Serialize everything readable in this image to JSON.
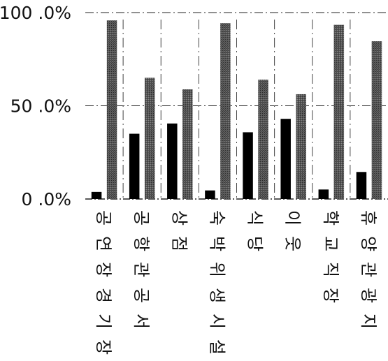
{
  "chart_data": {
    "type": "bar",
    "categories": [
      "공연장경기장",
      "공항관공서",
      "상점",
      "숙박위생시설",
      "식당",
      "이웃",
      "학교직장",
      "휴양관광지"
    ],
    "series": [
      {
        "values": [
          3.8,
          35.0,
          40.5,
          4.6,
          35.8,
          43.0,
          5.1,
          14.5
        ],
        "color": "#000000"
      },
      {
        "values": [
          95.8,
          65.0,
          58.8,
          94.3,
          64.0,
          56.2,
          93.4,
          84.6
        ],
        "color": "#4a4a4a"
      }
    ],
    "ylim": [
      0,
      100
    ],
    "yticks": [
      {
        "value": 0,
        "label": "0 .0%"
      },
      {
        "value": 50,
        "label": "50 .0%"
      },
      {
        "value": 100,
        "label": "100 .0%"
      }
    ],
    "grid": true,
    "legend": "none",
    "title": "",
    "xlabel": "",
    "ylabel": ""
  }
}
